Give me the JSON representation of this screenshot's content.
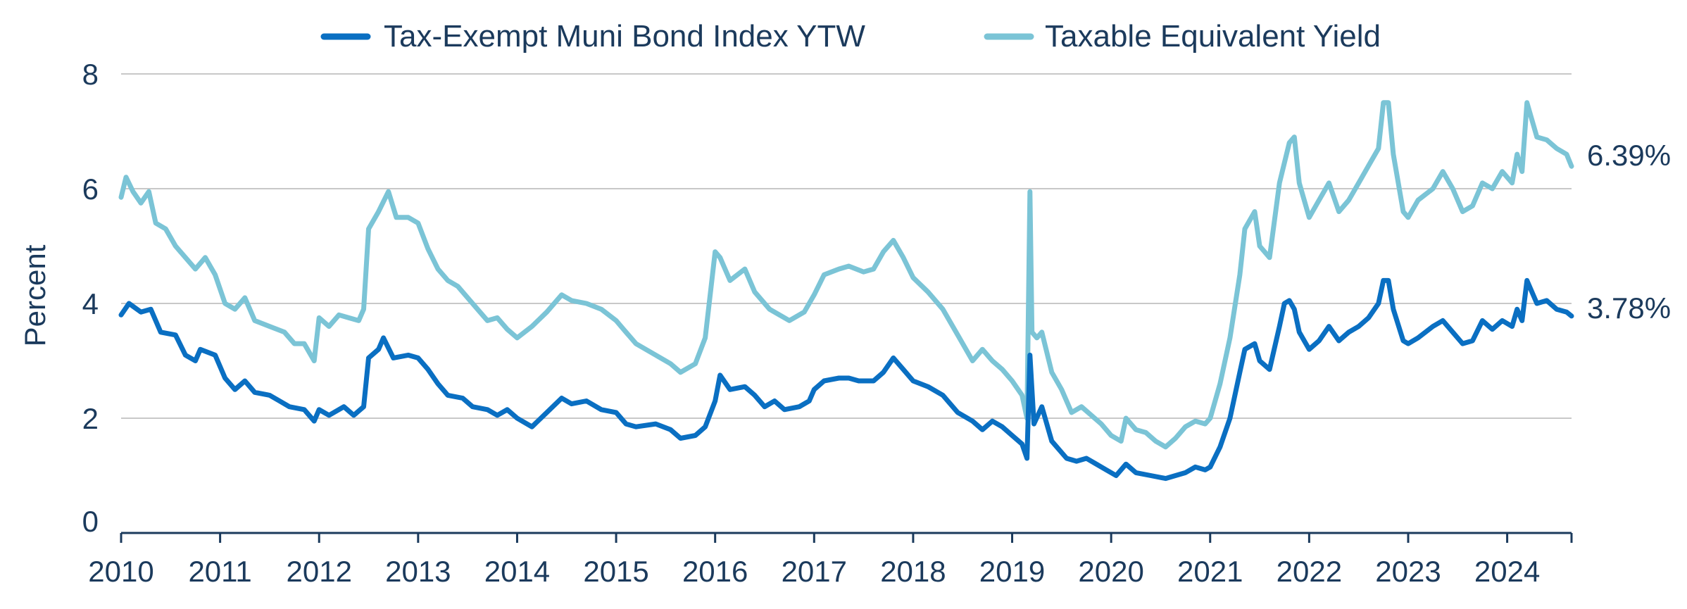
{
  "chart_data": {
    "type": "line",
    "title": "",
    "xlabel": "",
    "ylabel": "Percent",
    "xlim": [
      2010.0,
      2024.65
    ],
    "ylim": [
      0,
      8
    ],
    "grid": true,
    "legend_position": "top-center",
    "y_ticks": [
      "0",
      "2",
      "4",
      "6",
      "8"
    ],
    "x_ticks": [
      "2010",
      "2011",
      "2012",
      "2013",
      "2014",
      "2015",
      "2016",
      "2017",
      "2018",
      "2019",
      "2020",
      "2021",
      "2022",
      "2023",
      "2024"
    ],
    "end_labels": [
      "6.39%",
      "3.78%"
    ],
    "series": [
      {
        "name": "Tax-Exempt Muni Bond Index YTW",
        "color": "#0a6fc2",
        "points": [
          [
            2010.0,
            3.8
          ],
          [
            2010.08,
            4.0
          ],
          [
            2010.2,
            3.85
          ],
          [
            2010.3,
            3.9
          ],
          [
            2010.4,
            3.5
          ],
          [
            2010.55,
            3.45
          ],
          [
            2010.65,
            3.1
          ],
          [
            2010.75,
            3.0
          ],
          [
            2010.8,
            3.2
          ],
          [
            2010.95,
            3.1
          ],
          [
            2011.05,
            2.7
          ],
          [
            2011.15,
            2.5
          ],
          [
            2011.25,
            2.65
          ],
          [
            2011.35,
            2.45
          ],
          [
            2011.5,
            2.4
          ],
          [
            2011.6,
            2.3
          ],
          [
            2011.7,
            2.2
          ],
          [
            2011.85,
            2.15
          ],
          [
            2011.95,
            1.95
          ],
          [
            2012.0,
            2.15
          ],
          [
            2012.1,
            2.05
          ],
          [
            2012.25,
            2.2
          ],
          [
            2012.35,
            2.05
          ],
          [
            2012.45,
            2.2
          ],
          [
            2012.5,
            3.05
          ],
          [
            2012.6,
            3.2
          ],
          [
            2012.65,
            3.4
          ],
          [
            2012.75,
            3.05
          ],
          [
            2012.9,
            3.1
          ],
          [
            2013.0,
            3.05
          ],
          [
            2013.1,
            2.85
          ],
          [
            2013.2,
            2.6
          ],
          [
            2013.3,
            2.4
          ],
          [
            2013.45,
            2.35
          ],
          [
            2013.55,
            2.2
          ],
          [
            2013.7,
            2.15
          ],
          [
            2013.8,
            2.05
          ],
          [
            2013.9,
            2.15
          ],
          [
            2014.0,
            2.0
          ],
          [
            2014.15,
            1.85
          ],
          [
            2014.3,
            2.1
          ],
          [
            2014.45,
            2.35
          ],
          [
            2014.55,
            2.25
          ],
          [
            2014.7,
            2.3
          ],
          [
            2014.85,
            2.15
          ],
          [
            2015.0,
            2.1
          ],
          [
            2015.1,
            1.9
          ],
          [
            2015.2,
            1.85
          ],
          [
            2015.4,
            1.9
          ],
          [
            2015.55,
            1.8
          ],
          [
            2015.65,
            1.65
          ],
          [
            2015.8,
            1.7
          ],
          [
            2015.9,
            1.85
          ],
          [
            2016.0,
            2.3
          ],
          [
            2016.05,
            2.75
          ],
          [
            2016.15,
            2.5
          ],
          [
            2016.3,
            2.55
          ],
          [
            2016.4,
            2.4
          ],
          [
            2016.5,
            2.2
          ],
          [
            2016.6,
            2.3
          ],
          [
            2016.7,
            2.15
          ],
          [
            2016.85,
            2.2
          ],
          [
            2016.95,
            2.3
          ],
          [
            2017.0,
            2.5
          ],
          [
            2017.1,
            2.65
          ],
          [
            2017.25,
            2.7
          ],
          [
            2017.35,
            2.7
          ],
          [
            2017.45,
            2.65
          ],
          [
            2017.6,
            2.65
          ],
          [
            2017.7,
            2.8
          ],
          [
            2017.8,
            3.05
          ],
          [
            2017.9,
            2.85
          ],
          [
            2018.0,
            2.65
          ],
          [
            2018.15,
            2.55
          ],
          [
            2018.3,
            2.4
          ],
          [
            2018.45,
            2.1
          ],
          [
            2018.6,
            1.95
          ],
          [
            2018.7,
            1.8
          ],
          [
            2018.8,
            1.95
          ],
          [
            2018.9,
            1.85
          ],
          [
            2019.0,
            1.7
          ],
          [
            2019.1,
            1.55
          ],
          [
            2019.15,
            1.3
          ],
          [
            2019.18,
            3.1
          ],
          [
            2019.22,
            1.9
          ],
          [
            2019.3,
            2.2
          ],
          [
            2019.4,
            1.6
          ],
          [
            2019.55,
            1.3
          ],
          [
            2019.65,
            1.25
          ],
          [
            2019.75,
            1.3
          ],
          [
            2019.85,
            1.2
          ],
          [
            2019.95,
            1.1
          ],
          [
            2020.05,
            1.0
          ],
          [
            2020.15,
            1.2
          ],
          [
            2020.25,
            1.05
          ],
          [
            2020.4,
            1.0
          ],
          [
            2020.55,
            0.95
          ],
          [
            2020.65,
            1.0
          ],
          [
            2020.75,
            1.05
          ],
          [
            2020.85,
            1.15
          ],
          [
            2020.95,
            1.1
          ],
          [
            2021.0,
            1.15
          ],
          [
            2021.1,
            1.5
          ],
          [
            2021.2,
            2.0
          ],
          [
            2021.3,
            2.8
          ],
          [
            2021.35,
            3.2
          ],
          [
            2021.45,
            3.3
          ],
          [
            2021.5,
            3.0
          ],
          [
            2021.6,
            2.85
          ],
          [
            2021.7,
            3.6
          ],
          [
            2021.75,
            4.0
          ],
          [
            2021.8,
            4.05
          ],
          [
            2021.85,
            3.9
          ],
          [
            2021.9,
            3.5
          ],
          [
            2022.0,
            3.2
          ],
          [
            2022.1,
            3.35
          ],
          [
            2022.2,
            3.6
          ],
          [
            2022.3,
            3.35
          ],
          [
            2022.4,
            3.5
          ],
          [
            2022.5,
            3.6
          ],
          [
            2022.6,
            3.75
          ],
          [
            2022.7,
            4.0
          ],
          [
            2022.75,
            4.4
          ],
          [
            2022.8,
            4.4
          ],
          [
            2022.85,
            3.9
          ],
          [
            2022.95,
            3.35
          ],
          [
            2023.0,
            3.3
          ],
          [
            2023.1,
            3.4
          ],
          [
            2023.25,
            3.6
          ],
          [
            2023.35,
            3.7
          ],
          [
            2023.45,
            3.5
          ],
          [
            2023.55,
            3.3
          ],
          [
            2023.65,
            3.35
          ],
          [
            2023.75,
            3.7
          ],
          [
            2023.85,
            3.55
          ],
          [
            2023.95,
            3.7
          ],
          [
            2024.05,
            3.6
          ],
          [
            2024.1,
            3.9
          ],
          [
            2024.15,
            3.7
          ],
          [
            2024.2,
            4.4
          ],
          [
            2024.3,
            4.0
          ],
          [
            2024.4,
            4.05
          ],
          [
            2024.5,
            3.9
          ],
          [
            2024.6,
            3.85
          ],
          [
            2024.65,
            3.78
          ]
        ]
      },
      {
        "name": "Taxable Equivalent Yield",
        "color": "#7bc4d6",
        "points": [
          [
            2010.0,
            5.85
          ],
          [
            2010.05,
            6.2
          ],
          [
            2010.12,
            5.95
          ],
          [
            2010.2,
            5.75
          ],
          [
            2010.28,
            5.95
          ],
          [
            2010.35,
            5.4
          ],
          [
            2010.45,
            5.3
          ],
          [
            2010.55,
            5.0
          ],
          [
            2010.65,
            4.8
          ],
          [
            2010.75,
            4.6
          ],
          [
            2010.85,
            4.8
          ],
          [
            2010.95,
            4.5
          ],
          [
            2011.05,
            4.0
          ],
          [
            2011.15,
            3.9
          ],
          [
            2011.25,
            4.1
          ],
          [
            2011.35,
            3.7
          ],
          [
            2011.5,
            3.6
          ],
          [
            2011.65,
            3.5
          ],
          [
            2011.75,
            3.3
          ],
          [
            2011.85,
            3.3
          ],
          [
            2011.95,
            3.0
          ],
          [
            2012.0,
            3.75
          ],
          [
            2012.1,
            3.6
          ],
          [
            2012.2,
            3.8
          ],
          [
            2012.3,
            3.75
          ],
          [
            2012.4,
            3.7
          ],
          [
            2012.45,
            3.9
          ],
          [
            2012.5,
            5.3
          ],
          [
            2012.6,
            5.6
          ],
          [
            2012.7,
            5.95
          ],
          [
            2012.78,
            5.5
          ],
          [
            2012.9,
            5.5
          ],
          [
            2013.0,
            5.4
          ],
          [
            2013.1,
            4.95
          ],
          [
            2013.2,
            4.6
          ],
          [
            2013.3,
            4.4
          ],
          [
            2013.4,
            4.3
          ],
          [
            2013.5,
            4.1
          ],
          [
            2013.6,
            3.9
          ],
          [
            2013.7,
            3.7
          ],
          [
            2013.8,
            3.75
          ],
          [
            2013.9,
            3.55
          ],
          [
            2014.0,
            3.4
          ],
          [
            2014.15,
            3.6
          ],
          [
            2014.3,
            3.85
          ],
          [
            2014.45,
            4.15
          ],
          [
            2014.55,
            4.05
          ],
          [
            2014.7,
            4.0
          ],
          [
            2014.85,
            3.9
          ],
          [
            2015.0,
            3.7
          ],
          [
            2015.1,
            3.5
          ],
          [
            2015.2,
            3.3
          ],
          [
            2015.4,
            3.1
          ],
          [
            2015.55,
            2.95
          ],
          [
            2015.65,
            2.8
          ],
          [
            2015.8,
            2.95
          ],
          [
            2015.9,
            3.4
          ],
          [
            2016.0,
            4.9
          ],
          [
            2016.05,
            4.8
          ],
          [
            2016.15,
            4.4
          ],
          [
            2016.3,
            4.6
          ],
          [
            2016.4,
            4.2
          ],
          [
            2016.55,
            3.9
          ],
          [
            2016.65,
            3.8
          ],
          [
            2016.75,
            3.7
          ],
          [
            2016.9,
            3.85
          ],
          [
            2017.0,
            4.15
          ],
          [
            2017.1,
            4.5
          ],
          [
            2017.25,
            4.6
          ],
          [
            2017.35,
            4.65
          ],
          [
            2017.5,
            4.55
          ],
          [
            2017.6,
            4.6
          ],
          [
            2017.7,
            4.9
          ],
          [
            2017.8,
            5.1
          ],
          [
            2017.9,
            4.8
          ],
          [
            2018.0,
            4.45
          ],
          [
            2018.15,
            4.2
          ],
          [
            2018.3,
            3.9
          ],
          [
            2018.45,
            3.45
          ],
          [
            2018.6,
            3.0
          ],
          [
            2018.7,
            3.2
          ],
          [
            2018.8,
            3.0
          ],
          [
            2018.9,
            2.85
          ],
          [
            2019.0,
            2.65
          ],
          [
            2019.1,
            2.4
          ],
          [
            2019.15,
            2.0
          ],
          [
            2019.18,
            5.95
          ],
          [
            2019.2,
            3.5
          ],
          [
            2019.25,
            3.4
          ],
          [
            2019.3,
            3.5
          ],
          [
            2019.4,
            2.8
          ],
          [
            2019.5,
            2.5
          ],
          [
            2019.6,
            2.1
          ],
          [
            2019.7,
            2.2
          ],
          [
            2019.8,
            2.05
          ],
          [
            2019.9,
            1.9
          ],
          [
            2020.0,
            1.7
          ],
          [
            2020.1,
            1.6
          ],
          [
            2020.15,
            2.0
          ],
          [
            2020.25,
            1.8
          ],
          [
            2020.35,
            1.75
          ],
          [
            2020.45,
            1.6
          ],
          [
            2020.55,
            1.5
          ],
          [
            2020.65,
            1.65
          ],
          [
            2020.75,
            1.85
          ],
          [
            2020.85,
            1.95
          ],
          [
            2020.95,
            1.9
          ],
          [
            2021.0,
            2.0
          ],
          [
            2021.1,
            2.6
          ],
          [
            2021.2,
            3.4
          ],
          [
            2021.3,
            4.5
          ],
          [
            2021.35,
            5.3
          ],
          [
            2021.45,
            5.6
          ],
          [
            2021.5,
            5.0
          ],
          [
            2021.6,
            4.8
          ],
          [
            2021.7,
            6.1
          ],
          [
            2021.8,
            6.8
          ],
          [
            2021.85,
            6.9
          ],
          [
            2021.9,
            6.1
          ],
          [
            2022.0,
            5.5
          ],
          [
            2022.1,
            5.8
          ],
          [
            2022.2,
            6.1
          ],
          [
            2022.3,
            5.6
          ],
          [
            2022.4,
            5.8
          ],
          [
            2022.5,
            6.1
          ],
          [
            2022.6,
            6.4
          ],
          [
            2022.7,
            6.7
          ],
          [
            2022.75,
            7.5
          ],
          [
            2022.8,
            7.5
          ],
          [
            2022.85,
            6.6
          ],
          [
            2022.95,
            5.6
          ],
          [
            2023.0,
            5.5
          ],
          [
            2023.1,
            5.8
          ],
          [
            2023.25,
            6.0
          ],
          [
            2023.35,
            6.3
          ],
          [
            2023.45,
            6.0
          ],
          [
            2023.55,
            5.6
          ],
          [
            2023.65,
            5.7
          ],
          [
            2023.75,
            6.1
          ],
          [
            2023.85,
            6.0
          ],
          [
            2023.95,
            6.3
          ],
          [
            2024.05,
            6.1
          ],
          [
            2024.1,
            6.6
          ],
          [
            2024.15,
            6.3
          ],
          [
            2024.2,
            7.5
          ],
          [
            2024.3,
            6.9
          ],
          [
            2024.4,
            6.85
          ],
          [
            2024.5,
            6.7
          ],
          [
            2024.6,
            6.6
          ],
          [
            2024.65,
            6.39
          ]
        ]
      }
    ]
  }
}
